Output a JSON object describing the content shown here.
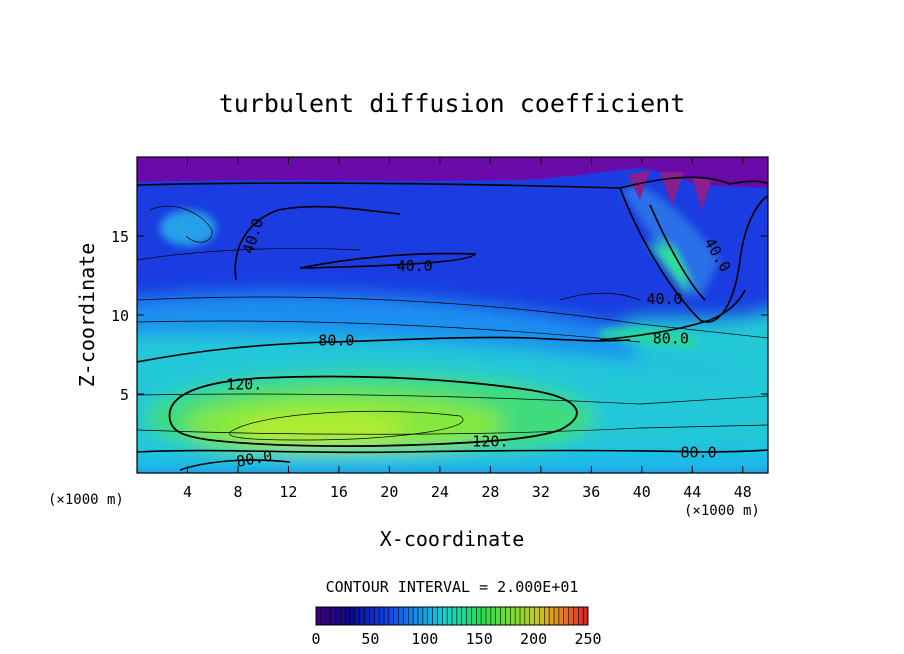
{
  "chart_data": {
    "type": "heatmap",
    "title": "turbulent diffusion coefficient",
    "xlabel": "X-coordinate",
    "ylabel": "Z-coordinate",
    "x_unit": "(×1000 m)",
    "y_unit": "(×1000 m)",
    "xlim": [
      0,
      50
    ],
    "ylim": [
      0,
      20
    ],
    "x_ticks": [
      4,
      8,
      12,
      16,
      20,
      24,
      28,
      32,
      36,
      40,
      44,
      48
    ],
    "y_ticks": [
      5,
      10,
      15
    ],
    "contour_interval_text": "CONTOUR INTERVAL = 2.000E+01",
    "contour_interval": 20,
    "contour_labels": [
      {
        "text": "40.0",
        "x": 9.2,
        "y": 15.0,
        "rotate": -72
      },
      {
        "text": "40.0",
        "x": 22.0,
        "y": 13.1,
        "rotate": 0
      },
      {
        "text": "40.0",
        "x": 46.0,
        "y": 13.8,
        "rotate": 60
      },
      {
        "text": "40.0",
        "x": 41.8,
        "y": 11.0,
        "rotate": 0
      },
      {
        "text": "80.0",
        "x": 15.8,
        "y": 8.4,
        "rotate": 0
      },
      {
        "text": "80.0",
        "x": 42.3,
        "y": 8.5,
        "rotate": 0
      },
      {
        "text": "80.0",
        "x": 44.5,
        "y": 1.3,
        "rotate": 0
      },
      {
        "text": "80.0",
        "x": 9.3,
        "y": 0.9,
        "rotate": -10
      },
      {
        "text": "120.",
        "x": 8.5,
        "y": 5.6,
        "rotate": 0
      },
      {
        "text": "120.",
        "x": 28.0,
        "y": 2.0,
        "rotate": 0
      }
    ],
    "colorbar": {
      "min": 0,
      "max": 250,
      "tick_labels": [
        "0",
        "50",
        "100",
        "150",
        "200",
        "250"
      ]
    }
  }
}
